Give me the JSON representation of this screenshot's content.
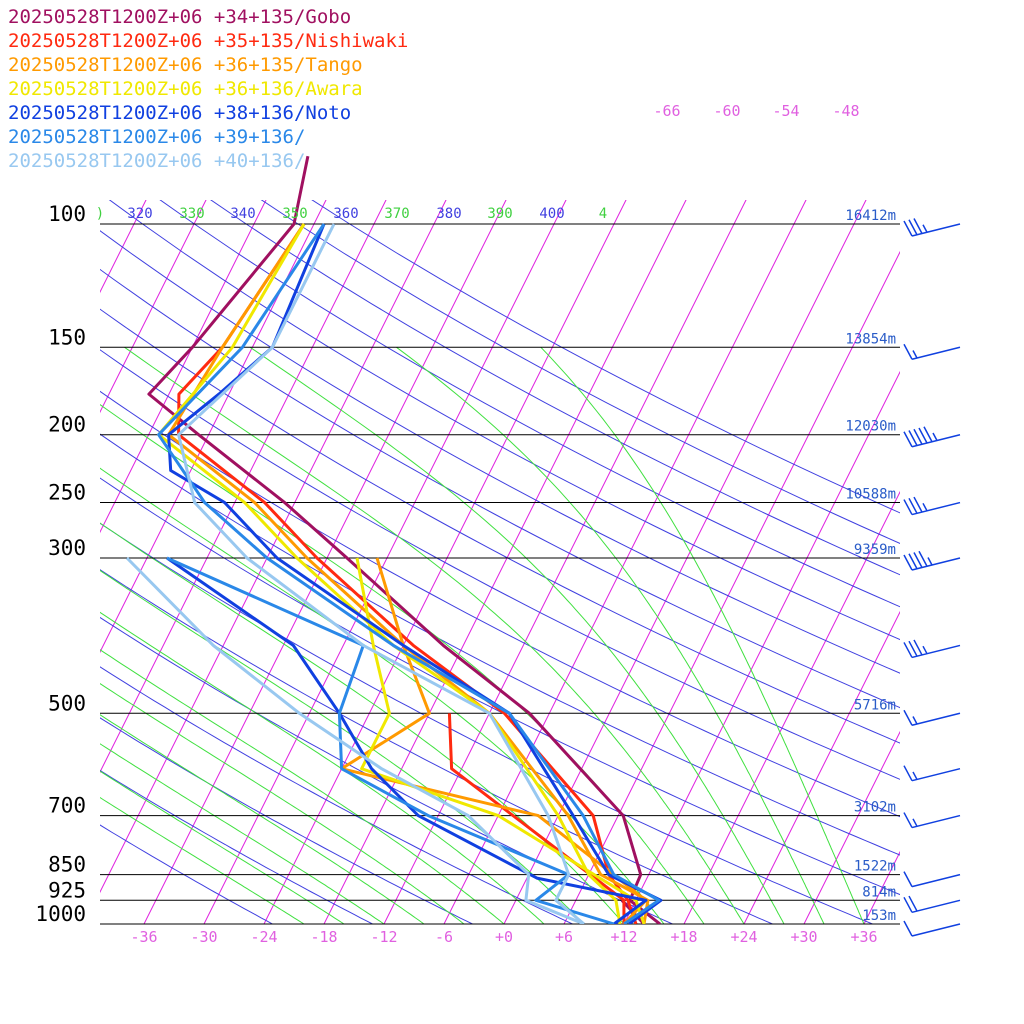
{
  "chart_data": {
    "type": "line",
    "legend": [
      {
        "label": "20250528T1200Z+06 +34+135/Gobo",
        "color": "#a01060"
      },
      {
        "label": "20250528T1200Z+06 +35+135/Nishiwaki",
        "color": "#ff2a10"
      },
      {
        "label": "20250528T1200Z+06 +36+135/Tango",
        "color": "#ff9a00"
      },
      {
        "label": "20250528T1200Z+06 +36+136/Awara",
        "color": "#f0e800"
      },
      {
        "label": "20250528T1200Z+06 +38+136/Noto",
        "color": "#1040e0"
      },
      {
        "label": "20250528T1200Z+06 +39+136/",
        "color": "#2a88e8"
      },
      {
        "label": "20250528T1200Z+06 +40+136/",
        "color": "#98c8f0"
      }
    ],
    "pressure_levels": [
      "100",
      "150",
      "200",
      "250",
      "300",
      "500",
      "700",
      "850",
      "925",
      "1000"
    ],
    "heights": [
      "16412m",
      "13854m",
      "12030m",
      "10588m",
      "9359m",
      "5716m",
      "3102m",
      "1522m",
      "814m",
      "153m"
    ],
    "temperature_ticks": [
      "-36",
      "-30",
      "-24",
      "-18",
      "-12",
      "-6",
      "+0",
      "+6",
      "+12",
      "+18",
      "+24",
      "+30",
      "+36"
    ],
    "theta_labels": [
      ")",
      "320",
      "330",
      "340",
      "350",
      "360",
      "370",
      "380",
      "390",
      "400",
      "4"
    ],
    "upper_isotherm_labels": [
      "-66",
      "-60",
      "-54",
      "-48"
    ],
    "colors": {
      "isotherm": "#e020e0",
      "dry_adiabat": "#4040e0",
      "moist_adiabat": "#40e040",
      "isobar": "#000000",
      "wind_barb": "#1040e0"
    },
    "series": [
      {
        "name": "Gobo",
        "temperature": [
          {
            "p": 1000,
            "t": 15.6
          },
          {
            "p": 925,
            "t": 11.4
          },
          {
            "p": 850,
            "t": 11.2
          },
          {
            "p": 700,
            "t": 6.5
          },
          {
            "p": 500,
            "t": -8
          },
          {
            "p": 400,
            "t": -20
          },
          {
            "p": 300,
            "t": -34
          },
          {
            "p": 250,
            "t": -43
          },
          {
            "p": 200,
            "t": -55
          },
          {
            "p": 175,
            "t": -62
          },
          {
            "p": 150,
            "t": -60
          },
          {
            "p": 100,
            "t": -56
          },
          {
            "p": 80,
            "t": -58
          }
        ],
        "dewpoint": [
          {
            "p": 1000,
            "t": 14
          },
          {
            "p": 925,
            "t": 10.6
          }
        ]
      },
      {
        "name": "Nishiwaki",
        "temperature": [
          {
            "p": 1000,
            "t": 13.2
          },
          {
            "p": 925,
            "t": 11.2
          },
          {
            "p": 850,
            "t": 8
          },
          {
            "p": 700,
            "t": 3.5
          },
          {
            "p": 500,
            "t": -10.5
          },
          {
            "p": 400,
            "t": -23
          },
          {
            "p": 300,
            "t": -37
          },
          {
            "p": 250,
            "t": -45
          },
          {
            "p": 200,
            "t": -57
          },
          {
            "p": 175,
            "t": -59
          },
          {
            "p": 150,
            "t": -57
          },
          {
            "p": 100,
            "t": -55
          }
        ],
        "dewpoint": [
          {
            "p": 1000,
            "t": 12
          },
          {
            "p": 925,
            "t": 10.8
          },
          {
            "p": 600,
            "t": -13
          },
          {
            "p": 500,
            "t": -16
          }
        ]
      },
      {
        "name": "Tango",
        "temperature": [
          {
            "p": 1000,
            "t": 14
          },
          {
            "p": 925,
            "t": 13.2
          },
          {
            "p": 850,
            "t": 7.2
          },
          {
            "p": 700,
            "t": 1
          },
          {
            "p": 500,
            "t": -12
          },
          {
            "p": 400,
            "t": -24
          },
          {
            "p": 300,
            "t": -38
          },
          {
            "p": 250,
            "t": -46
          },
          {
            "p": 200,
            "t": -58
          },
          {
            "p": 150,
            "t": -57
          },
          {
            "p": 100,
            "t": -55
          }
        ],
        "dewpoint": [
          {
            "p": 1000,
            "t": 12
          },
          {
            "p": 925,
            "t": 13
          },
          {
            "p": 700,
            "t": -2
          },
          {
            "p": 600,
            "t": -24
          },
          {
            "p": 500,
            "t": -18
          },
          {
            "p": 400,
            "t": -24
          },
          {
            "p": 300,
            "t": -31
          }
        ]
      },
      {
        "name": "Awara",
        "temperature": [
          {
            "p": 1000,
            "t": 11.6
          },
          {
            "p": 925,
            "t": 10
          },
          {
            "p": 850,
            "t": 6
          },
          {
            "p": 700,
            "t": 0
          },
          {
            "p": 500,
            "t": -12
          },
          {
            "p": 400,
            "t": -25
          },
          {
            "p": 300,
            "t": -39
          },
          {
            "p": 250,
            "t": -47
          },
          {
            "p": 200,
            "t": -59
          },
          {
            "p": 150,
            "t": -56
          },
          {
            "p": 100,
            "t": -55
          }
        ],
        "dewpoint": [
          {
            "p": 1000,
            "t": 14
          },
          {
            "p": 925,
            "t": 12
          },
          {
            "p": 700,
            "t": -6
          },
          {
            "p": 600,
            "t": -22
          },
          {
            "p": 500,
            "t": -22
          },
          {
            "p": 400,
            "t": -27
          },
          {
            "p": 300,
            "t": -33
          }
        ]
      },
      {
        "name": "Noto",
        "temperature": [
          {
            "p": 1000,
            "t": 12.5
          },
          {
            "p": 925,
            "t": 14.5
          },
          {
            "p": 850,
            "t": 8
          },
          {
            "p": 700,
            "t": 1.5
          },
          {
            "p": 500,
            "t": -10
          },
          {
            "p": 400,
            "t": -24
          },
          {
            "p": 300,
            "t": -41
          },
          {
            "p": 250,
            "t": -49
          },
          {
            "p": 225,
            "t": -56
          },
          {
            "p": 200,
            "t": -58
          },
          {
            "p": 175,
            "t": -55
          },
          {
            "p": 150,
            "t": -52
          },
          {
            "p": 100,
            "t": -53
          }
        ],
        "dewpoint": [
          {
            "p": 1000,
            "t": 11
          },
          {
            "p": 925,
            "t": 13
          },
          {
            "p": 860,
            "t": 1
          },
          {
            "p": 700,
            "t": -14
          },
          {
            "p": 600,
            "t": -21
          },
          {
            "p": 500,
            "t": -27
          },
          {
            "p": 400,
            "t": -35
          },
          {
            "p": 300,
            "t": -52
          }
        ]
      },
      {
        "name": "",
        "temperature": [
          {
            "p": 1000,
            "t": 12
          },
          {
            "p": 925,
            "t": 14.3
          },
          {
            "p": 850,
            "t": 8.5
          },
          {
            "p": 700,
            "t": 2.5
          },
          {
            "p": 500,
            "t": -10
          },
          {
            "p": 400,
            "t": -25
          },
          {
            "p": 300,
            "t": -42
          },
          {
            "p": 250,
            "t": -51
          },
          {
            "p": 200,
            "t": -59
          },
          {
            "p": 150,
            "t": -55
          },
          {
            "p": 100,
            "t": -53
          }
        ],
        "dewpoint": [
          {
            "p": 1000,
            "t": 11
          },
          {
            "p": 925,
            "t": 2
          },
          {
            "p": 850,
            "t": 4
          },
          {
            "p": 700,
            "t": -13
          },
          {
            "p": 600,
            "t": -24
          },
          {
            "p": 500,
            "t": -27
          },
          {
            "p": 400,
            "t": -28
          },
          {
            "p": 300,
            "t": -52
          }
        ]
      },
      {
        "name": "",
        "temperature": [
          {
            "p": 1000,
            "t": 8
          },
          {
            "p": 925,
            "t": 4
          },
          {
            "p": 850,
            "t": 4
          },
          {
            "p": 700,
            "t": -1
          },
          {
            "p": 500,
            "t": -12
          },
          {
            "p": 400,
            "t": -28
          },
          {
            "p": 300,
            "t": -44
          },
          {
            "p": 250,
            "t": -52
          },
          {
            "p": 200,
            "t": -57
          },
          {
            "p": 150,
            "t": -52
          },
          {
            "p": 100,
            "t": -52
          }
        ],
        "dewpoint": [
          {
            "p": 1000,
            "t": 8
          },
          {
            "p": 925,
            "t": 1
          },
          {
            "p": 850,
            "t": 0
          },
          {
            "p": 700,
            "t": -9
          },
          {
            "p": 600,
            "t": -20
          },
          {
            "p": 500,
            "t": -31
          },
          {
            "p": 400,
            "t": -43
          },
          {
            "p": 300,
            "t": -56
          }
        ]
      }
    ],
    "wind_barbs": [
      {
        "p": 1000,
        "knots": 10
      },
      {
        "p": 925,
        "knots": 20
      },
      {
        "p": 850,
        "knots": 10
      },
      {
        "p": 700,
        "knots": 15
      },
      {
        "p": 600,
        "knots": 15
      },
      {
        "p": 500,
        "knots": 15
      },
      {
        "p": 400,
        "knots": 35
      },
      {
        "p": 300,
        "knots": 45
      },
      {
        "p": 250,
        "knots": 35
      },
      {
        "p": 200,
        "knots": 55
      },
      {
        "p": 150,
        "knots": 15
      },
      {
        "p": 100,
        "knots": 35
      }
    ]
  }
}
